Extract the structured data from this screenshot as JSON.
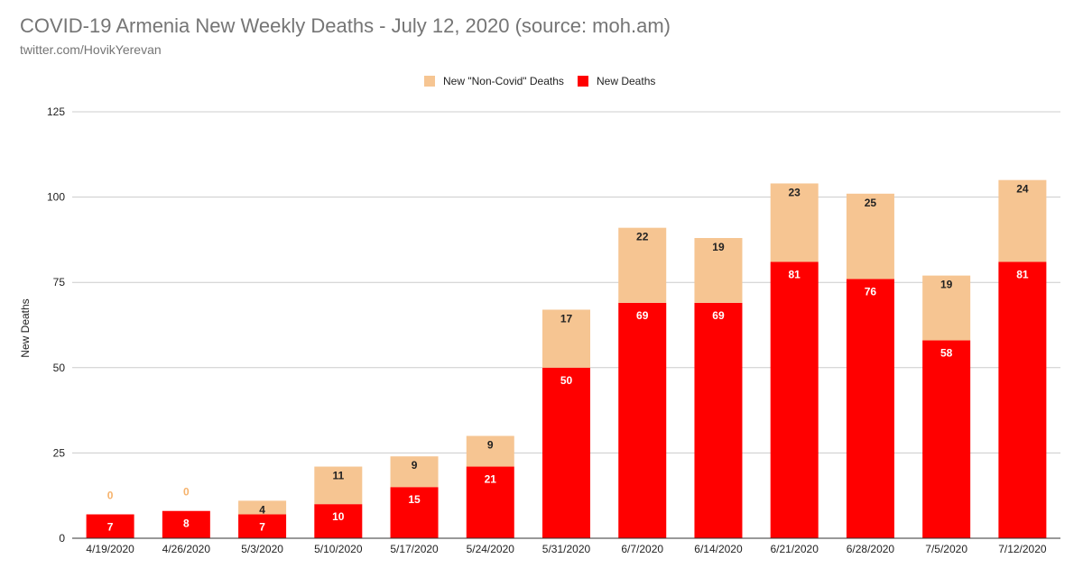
{
  "header": {
    "title": "COVID-19 Armenia New Weekly Deaths - July 12, 2020 (source: moh.am)",
    "subtitle": "twitter.com/HovikYerevan"
  },
  "colors": {
    "new_deaths": "#ff0000",
    "non_covid": "#f6c592",
    "gridline": "#cccccc",
    "axis_line": "#333333",
    "label_on_red": "#ffffff",
    "label_on_tan": "#222222",
    "label_zero": "#f6b26b"
  },
  "chart_data": {
    "type": "bar",
    "stacked": true,
    "title": "COVID-19 Armenia New Weekly Deaths - July 12, 2020 (source: moh.am)",
    "xlabel": "",
    "ylabel": "New Deaths",
    "ylim": [
      0,
      125
    ],
    "yticks": [
      0,
      25,
      50,
      75,
      100,
      125
    ],
    "grid": true,
    "legend_position": "top-center",
    "categories": [
      "4/19/2020",
      "4/26/2020",
      "5/3/2020",
      "5/10/2020",
      "5/17/2020",
      "5/24/2020",
      "5/31/2020",
      "6/7/2020",
      "6/14/2020",
      "6/21/2020",
      "6/28/2020",
      "7/5/2020",
      "7/12/2020"
    ],
    "series": [
      {
        "name": "New \"Non-Covid\" Deaths",
        "key": "non_covid",
        "values": [
          0,
          0,
          4,
          11,
          9,
          9,
          17,
          22,
          19,
          23,
          25,
          19,
          24
        ]
      },
      {
        "name": "New Deaths",
        "key": "new_deaths",
        "values": [
          7,
          8,
          7,
          10,
          15,
          21,
          50,
          69,
          69,
          81,
          76,
          58,
          81
        ]
      }
    ]
  }
}
